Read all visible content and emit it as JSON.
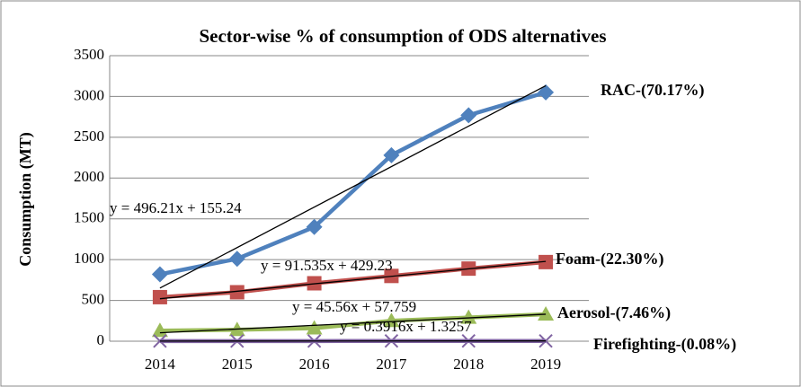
{
  "chart_data": {
    "type": "line",
    "title": "Sector-wise % of consumption of ODS alternatives",
    "ylabel": "Consumption (MT)",
    "categories": [
      "2014",
      "2015",
      "2016",
      "2017",
      "2018",
      "2019"
    ],
    "series": [
      {
        "name": "RAC-(70.17%)",
        "color": "#4f81bd",
        "marker": "diamond",
        "values": [
          820,
          1010,
          1400,
          2280,
          2770,
          3050
        ],
        "trendline": {
          "label": "y = 496.21x + 155.24",
          "slope": 496.21,
          "intercept": 155.24
        }
      },
      {
        "name": "Foam-(22.30%)",
        "color": "#c0504d",
        "marker": "square",
        "values": [
          540,
          600,
          710,
          800,
          890,
          970
        ],
        "trendline": {
          "label": "y = 91.535x + 429.23",
          "slope": 91.535,
          "intercept": 429.23
        }
      },
      {
        "name": "Aerosol-(7.46%)",
        "color": "#9bbb59",
        "marker": "triangle",
        "values": [
          130,
          140,
          160,
          250,
          290,
          330
        ],
        "trendline": {
          "label": "y = 45.56x + 57.759",
          "slope": 45.56,
          "intercept": 57.759
        }
      },
      {
        "name": "Firefighting-(0.08%)",
        "color": "#8064a2",
        "marker": "x",
        "values": [
          2,
          2,
          2,
          3,
          3,
          3
        ],
        "trendline": {
          "label": "y = 0.3916x + 1.3257",
          "slope": 0.3916,
          "intercept": 1.3257
        }
      }
    ],
    "ylim": [
      0,
      3500
    ],
    "yticks": [
      0,
      500,
      1000,
      1500,
      2000,
      2500,
      3000,
      3500
    ],
    "grid": true
  }
}
